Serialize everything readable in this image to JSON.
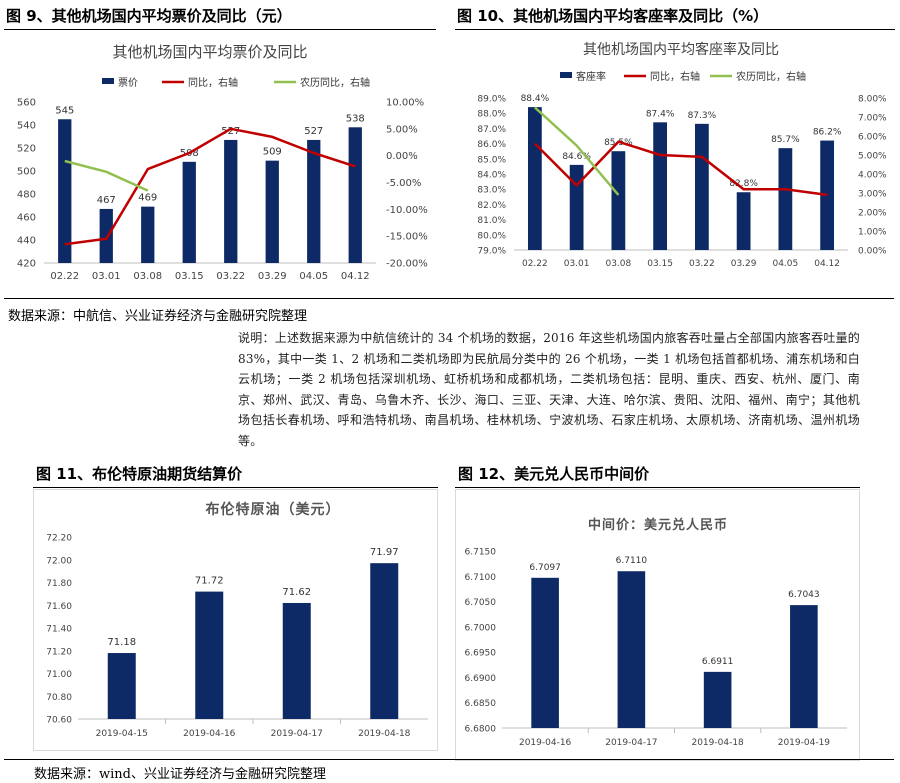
{
  "figures": {
    "fig9": {
      "heading": "图 9、其他机场国内平均票价及同比（元）"
    },
    "fig10": {
      "heading": "图 10、其他机场国内平均客座率及同比（%）"
    },
    "fig11": {
      "heading": "图 11、布伦特原油期货结算价"
    },
    "fig12": {
      "heading": "图 12、美元兑人民币中间价"
    }
  },
  "source_top": "数据来源：中航信、兴业证券经济与金融研究院整理",
  "note": "说明：上述数据来源为中航信统计的 34 个机场的数据，2016 年这些机场国内旅客吞吐量占全部国内旅客吞吐量的 83%，其中一类 1、2 机场和二类机场即为民航局分类中的 26 个机场，一类 1 机场包括首都机场、浦东机场和白云机场；一类 2 机场包括深圳机场、虹桥机场和成都机场，二类机场包括：昆明、重庆、西安、杭州、厦门、南京、郑州、武汉、青岛、乌鲁木齐、长沙、海口、三亚、天津、大连、哈尔滨、贵阳、沈阳、福州、南宁；其他机场包括长春机场、呼和浩特机场、南昌机场、桂林机场、宁波机场、石家庄机场、太原机场、济南机场、温州机场等。",
  "source_bottom": "数据来源：wind、兴业证券经济与金融研究院整理",
  "colors": {
    "navy": "#0e2a66",
    "red": "#c00000",
    "green": "#92c050",
    "grid": "#d9d9d9"
  },
  "chart_data": [
    {
      "id": "fig9",
      "type": "bar",
      "title": "其他机场国内平均票价及同比",
      "categories": [
        "02.22",
        "03.01",
        "03.08",
        "03.15",
        "03.22",
        "03.29",
        "04.05",
        "04.12"
      ],
      "series": [
        {
          "name": "票价",
          "type": "bar",
          "axis": "left",
          "values": [
            545,
            467,
            469,
            508,
            527,
            509,
            527,
            538
          ],
          "labels": [
            "545",
            "467",
            "469",
            "508",
            "527",
            "509",
            "527",
            "538"
          ]
        },
        {
          "name": "同比，右轴",
          "type": "line",
          "axis": "right",
          "values": [
            -16.5,
            -15.5,
            -2.5,
            0.5,
            5.0,
            3.5,
            0.5,
            -2.0
          ]
        },
        {
          "name": "农历同比，右轴",
          "type": "line",
          "axis": "right",
          "values": [
            -1.0,
            -3.0,
            -6.5,
            null,
            null,
            null,
            null,
            null
          ]
        }
      ],
      "ylim": [
        420,
        560
      ],
      "yticks": [
        "420",
        "440",
        "460",
        "480",
        "500",
        "520",
        "540",
        "560"
      ],
      "y2lim": [
        -20,
        10
      ],
      "y2ticks": [
        "-20.00%",
        "-15.00%",
        "-10.00%",
        "-5.00%",
        "0.00%",
        "5.00%",
        "10.00%"
      ],
      "legend": "top"
    },
    {
      "id": "fig10",
      "type": "bar",
      "title": "其他机场国内平均客座率及同比",
      "categories": [
        "02.22",
        "03.01",
        "03.08",
        "03.15",
        "03.22",
        "03.29",
        "04.05",
        "04.12"
      ],
      "series": [
        {
          "name": "客座率",
          "type": "bar",
          "axis": "left",
          "values": [
            88.4,
            84.6,
            85.5,
            87.4,
            87.3,
            82.8,
            85.7,
            86.2
          ],
          "labels": [
            "88.4%",
            "84.6%",
            "85.5%",
            "87.4%",
            "87.3%",
            "82.8%",
            "85.7%",
            "86.2%"
          ]
        },
        {
          "name": "同比，右轴",
          "type": "line",
          "axis": "right",
          "values": [
            5.6,
            3.4,
            5.7,
            5.0,
            4.9,
            3.2,
            3.2,
            2.9
          ]
        },
        {
          "name": "农历同比，右轴",
          "type": "line",
          "axis": "right",
          "values": [
            7.5,
            5.5,
            2.9,
            null,
            null,
            null,
            null,
            null
          ]
        }
      ],
      "ylim": [
        79,
        89
      ],
      "yticks": [
        "79.0%",
        "80.0%",
        "81.0%",
        "82.0%",
        "83.0%",
        "84.0%",
        "85.0%",
        "86.0%",
        "87.0%",
        "88.0%",
        "89.0%"
      ],
      "y2lim": [
        0,
        8
      ],
      "y2ticks": [
        "0.00%",
        "1.00%",
        "2.00%",
        "3.00%",
        "4.00%",
        "5.00%",
        "6.00%",
        "7.00%",
        "8.00%"
      ],
      "legend": "top"
    },
    {
      "id": "fig11",
      "type": "bar",
      "title": "布伦特原油（美元）",
      "categories": [
        "2019-04-15",
        "2019-04-16",
        "2019-04-17",
        "2019-04-18"
      ],
      "values": [
        71.18,
        71.72,
        71.62,
        71.97
      ],
      "labels": [
        "71.18",
        "71.72",
        "71.62",
        "71.97"
      ],
      "ylim": [
        70.6,
        72.2
      ],
      "yticks": [
        "70.60",
        "70.80",
        "71.00",
        "71.20",
        "71.40",
        "71.60",
        "71.80",
        "72.00",
        "72.20"
      ]
    },
    {
      "id": "fig12",
      "type": "bar",
      "title": "中间价：美元兑人民币",
      "categories": [
        "2019-04-16",
        "2019-04-17",
        "2019-04-18",
        "2019-04-19"
      ],
      "values": [
        6.7097,
        6.711,
        6.6911,
        6.7043
      ],
      "labels": [
        "6.7097",
        "6.7110",
        "6.6911",
        "6.7043"
      ],
      "ylim": [
        6.68,
        6.715
      ],
      "yticks": [
        "6.6800",
        "6.6850",
        "6.6900",
        "6.6950",
        "6.7000",
        "6.7050",
        "6.7100",
        "6.7150"
      ]
    }
  ]
}
